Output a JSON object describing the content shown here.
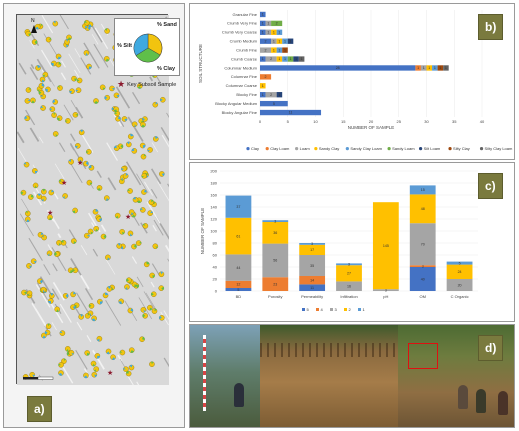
{
  "panels": {
    "a": "a)",
    "b": "b)",
    "c": "c)",
    "d": "d)"
  },
  "map": {
    "inset_labels": {
      "sand": "% Sand",
      "silt": "% Silt",
      "clay": "% Clay"
    },
    "key_label": "Key Subsoil Sample",
    "north": "N",
    "colors": {
      "sand": "#f2c40f",
      "silt": "#3fa9e0",
      "clay": "#5fbf4a"
    }
  },
  "chart_data": [
    {
      "type": "bar",
      "orientation": "horizontal",
      "stacked": true,
      "title": "",
      "xlabel": "NUMBER OF SAMPLE",
      "ylabel": "SOIL STRUCTURE",
      "xlim": [
        0,
        40
      ],
      "xticks": [
        0,
        5,
        10,
        15,
        20,
        25,
        30,
        35,
        40
      ],
      "categories": [
        "Granular Fine",
        "Crumb Very Fine",
        "Crumb Very Coarse",
        "Crumb Medium",
        "Crumb Fine",
        "Crumb Coarse",
        "Columnar Medium",
        "Columnar Fine",
        "Columnar Coarse",
        "Blocky Fine",
        "Blocky Angular Medium",
        "Blocky Angular Fine"
      ],
      "legend_position": "bottom",
      "series": [
        {
          "name": "Clay",
          "color": "#4472c4",
          "values": [
            1,
            1,
            1,
            2,
            0,
            1,
            28,
            0,
            0,
            1,
            5,
            11
          ]
        },
        {
          "name": "Clay Loam",
          "color": "#ed7d31",
          "values": [
            0,
            0,
            0,
            0,
            0,
            0,
            1,
            2,
            0,
            0,
            0,
            0
          ]
        },
        {
          "name": "Loam",
          "color": "#a5a5a5",
          "values": [
            0,
            1,
            1,
            1,
            2,
            2,
            1,
            0,
            0,
            2,
            0,
            0
          ]
        },
        {
          "name": "Sandy Clay",
          "color": "#ffc000",
          "values": [
            0,
            0,
            1,
            1,
            1,
            1,
            1,
            0,
            1,
            0,
            0,
            0
          ]
        },
        {
          "name": "Sandy Clay Loam",
          "color": "#5b9bd5",
          "values": [
            0,
            0,
            1,
            1,
            1,
            1,
            1,
            0,
            0,
            0,
            0,
            0
          ]
        },
        {
          "name": "Sandy Loam",
          "color": "#70ad47",
          "values": [
            0,
            2,
            0,
            0,
            0,
            1,
            0,
            0,
            0,
            0,
            0,
            0
          ]
        },
        {
          "name": "Silt Loam",
          "color": "#264478",
          "values": [
            0,
            0,
            0,
            1,
            0,
            1,
            0,
            0,
            0,
            1,
            0,
            0
          ]
        },
        {
          "name": "Silty Clay",
          "color": "#9e480e",
          "values": [
            0,
            0,
            0,
            0,
            1,
            0,
            1,
            0,
            0,
            0,
            0,
            0
          ]
        },
        {
          "name": "Silty Clay Loam",
          "color": "#636363",
          "values": [
            0,
            0,
            0,
            0,
            0,
            1,
            1,
            0,
            0,
            0,
            0,
            0
          ]
        }
      ],
      "data_labels": {
        "Granular Fine": [
          "1"
        ],
        "Crumb Very Fine": [
          "1",
          "1",
          "2"
        ],
        "Crumb Very Coarse": [
          "1",
          "1",
          "1",
          "1"
        ],
        "Crumb Medium": [
          "2",
          "1",
          "1",
          "1",
          "1"
        ],
        "Crumb Fine": [
          "2",
          "1",
          "1",
          "1"
        ],
        "Crumb Coarse": [
          "1",
          "2",
          "1",
          "1",
          "1",
          "1",
          "1"
        ],
        "Columnar Medium": [
          "28",
          "1",
          "1",
          "1",
          "1",
          "1",
          "1"
        ],
        "Columnar Fine": [
          "2"
        ],
        "Columnar Coarse": [
          "1"
        ],
        "Blocky Fine": [
          "1",
          "2",
          "1"
        ],
        "Blocky Angular Medium": [
          "5"
        ],
        "Blocky Angular Fine": [
          "11"
        ]
      }
    },
    {
      "type": "bar",
      "orientation": "vertical",
      "stacked": true,
      "title": "",
      "xlabel": "",
      "ylabel": "NUMBER OF SAMPLE",
      "ylim": [
        0,
        200
      ],
      "yticks": [
        0,
        20,
        40,
        60,
        80,
        100,
        120,
        140,
        160,
        180,
        200
      ],
      "categories": [
        "BD",
        "Porosity",
        "Permeability",
        "Infiltration",
        "pH",
        "OM",
        "C Organic"
      ],
      "legend_position": "bottom",
      "series": [
        {
          "name": "5",
          "color": "#4472c4",
          "values": [
            5,
            0,
            11,
            0,
            0,
            40,
            0
          ]
        },
        {
          "name": "4",
          "color": "#ed7d31",
          "values": [
            12,
            23,
            14,
            0,
            0,
            3,
            0
          ]
        },
        {
          "name": "3",
          "color": "#a5a5a5",
          "values": [
            44,
            56,
            35,
            16,
            3,
            70,
            20
          ]
        },
        {
          "name": "2",
          "color": "#ffc000",
          "values": [
            61,
            36,
            17,
            27,
            145,
            48,
            24
          ]
        },
        {
          "name": "1",
          "color": "#5b9bd5",
          "values": [
            37,
            3,
            3,
            3,
            0,
            15,
            5
          ]
        }
      ]
    }
  ]
}
